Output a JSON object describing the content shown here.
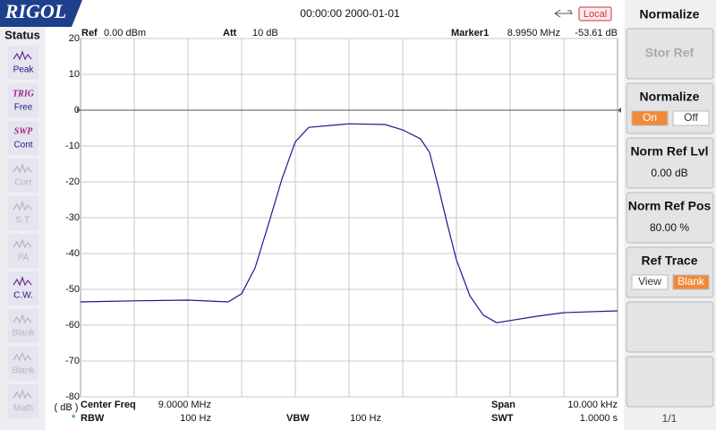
{
  "header": {
    "brand": "RIGOL",
    "datetime": "00:00:00 2000-01-01",
    "mode": "Local"
  },
  "status": {
    "title": "Status",
    "items": [
      {
        "label": "Peak",
        "active": true
      },
      {
        "tag": "TRIG",
        "label": "Free",
        "active": true
      },
      {
        "tag": "SWP",
        "label": "Cont",
        "active": true
      },
      {
        "label": "Corr",
        "active": false
      },
      {
        "label": "S.T.",
        "active": false
      },
      {
        "label": "PA",
        "active": false
      },
      {
        "label": "C.W.",
        "active": true
      },
      {
        "label": "Blank",
        "active": false
      },
      {
        "label": "Blank",
        "active": false
      },
      {
        "label": "Math",
        "active": false
      }
    ]
  },
  "info_top": {
    "ref_label": "Ref",
    "ref_value": "0.00 dBm",
    "att_label": "Att",
    "att_value": "10 dB",
    "marker_label": "Marker1",
    "marker_freq": "8.9950 MHz",
    "marker_value": "-53.61 dB"
  },
  "info_bottom": {
    "center_label": "Center Freq",
    "center_value": "9.0000 MHz",
    "span_label": "Span",
    "span_value": "10.000 kHz",
    "rbw_flag": "*",
    "rbw_label": "RBW",
    "rbw_value": "100 Hz",
    "vbw_label": "VBW",
    "vbw_value": "100 Hz",
    "swt_label": "SWT",
    "swt_value": "1.0000 s"
  },
  "chart_data": {
    "type": "line",
    "y_unit": "( dB )",
    "x": [
      4.0,
      5.0,
      6.0,
      6.75,
      7.0,
      7.25,
      7.5,
      7.75,
      8.0,
      8.25,
      9.0,
      9.67,
      10.0,
      10.33,
      10.5,
      10.67,
      10.83,
      11.0,
      11.25,
      11.5,
      11.75,
      12.0,
      12.5,
      13.0,
      14.0
    ],
    "series": [
      {
        "name": "Trace",
        "color": "#1a1a8c",
        "values": [
          -53.5,
          -53.2,
          -53,
          -53.5,
          -51.2,
          -44,
          -31.8,
          -19.2,
          -8.8,
          -4.8,
          -3.8,
          -4,
          -5.5,
          -8,
          -11.8,
          -21.8,
          -31.8,
          -41.8,
          -51.8,
          -57.2,
          -59.3,
          -58.7,
          -57.5,
          -56.5,
          -56
        ]
      }
    ],
    "xlim": [
      4,
      14
    ],
    "ylim": [
      -80,
      20
    ],
    "yticks": [
      20,
      10,
      0,
      -10,
      -20,
      -30,
      -40,
      -50,
      -60,
      -70,
      -80
    ],
    "grid": true
  },
  "menu": {
    "title": "Normalize",
    "page": "1/1",
    "buttons": [
      {
        "label": "Stor Ref",
        "disabled": true
      },
      {
        "label": "Normalize",
        "options": [
          "On",
          "Off"
        ],
        "selected": 0
      },
      {
        "label": "Norm Ref Lvl",
        "value": "0.00 dB"
      },
      {
        "label": "Norm Ref Pos",
        "value": "80.00 %"
      },
      {
        "label": "Ref Trace",
        "options": [
          "View",
          "Blank"
        ],
        "selected": 1
      },
      {},
      {}
    ]
  }
}
